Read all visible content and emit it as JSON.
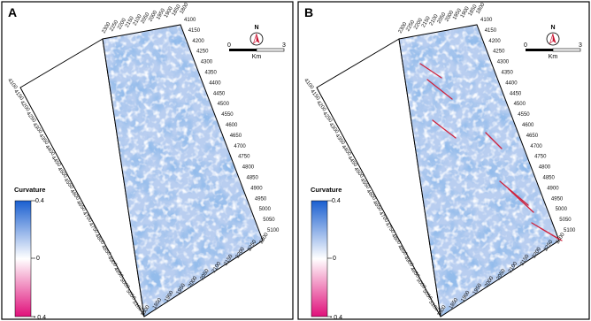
{
  "panels": [
    {
      "label": "A",
      "has_faults": false,
      "top_ticks": [
        "2300",
        "2250",
        "2200",
        "2150",
        "2100",
        "2050",
        "2000",
        "1950",
        "1900",
        "1850",
        "1800"
      ],
      "right_ticks": [
        "4100",
        "4150",
        "4200",
        "4250",
        "4300",
        "4350",
        "4400",
        "4450",
        "4500",
        "4550",
        "4600",
        "4650",
        "4700",
        "4750",
        "4800",
        "4850",
        "4900",
        "4950",
        "5000",
        "5050",
        "5100"
      ],
      "left_ticks": [
        "4100",
        "4150",
        "4200",
        "4250",
        "4300",
        "4350",
        "4400",
        "4450",
        "4500",
        "4550",
        "4600",
        "4650",
        "4700",
        "4750",
        "4800",
        "4850",
        "4900",
        "4950",
        "5000",
        "5050",
        "5100"
      ],
      "bottom_ticks": [
        "1800",
        "1850",
        "1900",
        "1950",
        "2000",
        "2050",
        "2100",
        "2150",
        "2200",
        "2250",
        "2300"
      ]
    },
    {
      "label": "B",
      "has_faults": true,
      "top_ticks": [
        "2300",
        "2250",
        "2200",
        "2150",
        "2100",
        "2050",
        "2000",
        "1950",
        "1900",
        "1850",
        "1800"
      ],
      "right_ticks": [
        "4100",
        "4150",
        "4200",
        "4250",
        "4300",
        "4350",
        "4400",
        "4450",
        "4500",
        "4550",
        "4600",
        "4650",
        "4700",
        "4750",
        "4800",
        "4850",
        "4900",
        "4950",
        "5000",
        "5050",
        "5100"
      ],
      "left_ticks": [
        "4100",
        "4150",
        "4200",
        "4250",
        "4300",
        "4350",
        "4400",
        "4450",
        "4500",
        "4550",
        "4600",
        "4650",
        "4700",
        "4750",
        "4800",
        "4850",
        "4900",
        "4950",
        "5000",
        "5050",
        "5100"
      ],
      "bottom_ticks": [
        "1800",
        "1850",
        "1900",
        "1950",
        "2000",
        "2050",
        "2100",
        "2150",
        "2200",
        "2250",
        "2300"
      ]
    }
  ],
  "legend": {
    "title": "Curvature",
    "max_label": "0.4",
    "mid_label": "0",
    "min_label": "- 0.4",
    "colors": {
      "high": "#1a5fd0",
      "mid": "#ffffff",
      "low": "#e0107a"
    }
  },
  "north_arrow": {
    "letter": "N",
    "icon": "north-arrow-icon"
  },
  "scale_bar": {
    "start": "0",
    "end": "3",
    "unit": "Km"
  },
  "map_colors": {
    "base": "#b9cef0",
    "dark": "#4b7fd4",
    "light": "#f1f5fc",
    "fault": "#d0233d",
    "frame": "#000000"
  }
}
